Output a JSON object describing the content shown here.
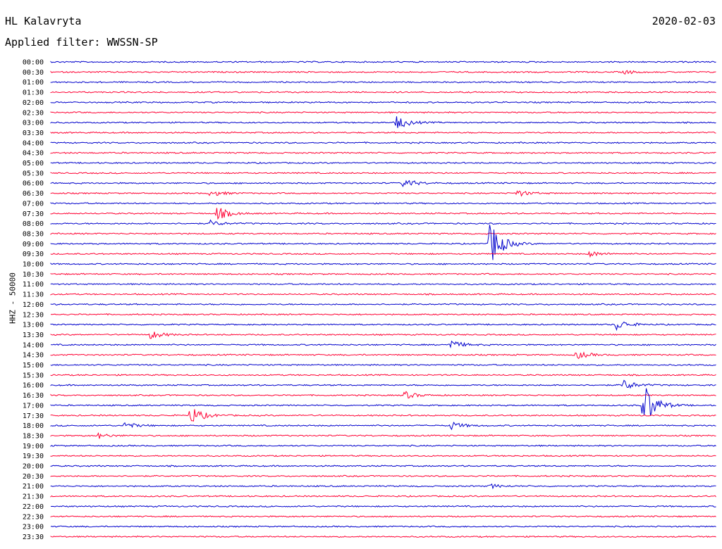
{
  "header": {
    "station": "HL Kalavryta",
    "date": "2020-02-03",
    "filter": "Applied filter: WWSSN-SP"
  },
  "chart_data": {
    "type": "line",
    "title": "HL Kalavryta",
    "ylabel": "HHZ - 50000",
    "colors": [
      "#0000cc",
      "#ff0033"
    ],
    "rows": [
      "00:00",
      "00:30",
      "01:00",
      "01:30",
      "02:00",
      "02:30",
      "03:00",
      "03:30",
      "04:00",
      "04:30",
      "05:00",
      "05:30",
      "06:00",
      "06:30",
      "07:00",
      "07:30",
      "08:00",
      "08:30",
      "09:00",
      "09:30",
      "10:00",
      "10:30",
      "11:00",
      "11:30",
      "12:00",
      "12:30",
      "13:00",
      "13:30",
      "14:00",
      "14:30",
      "15:00",
      "15:30",
      "16:00",
      "16:30",
      "17:00",
      "17:30",
      "18:00",
      "18:30",
      "19:00",
      "19:30",
      "20:00",
      "20:30",
      "21:00",
      "21:30",
      "22:00",
      "22:30",
      "23:00",
      "23:30"
    ],
    "events": [
      {
        "row": 1,
        "x": 0.86,
        "amp": 3
      },
      {
        "row": 6,
        "x": 0.52,
        "amp": 10
      },
      {
        "row": 12,
        "x": 0.53,
        "amp": 7
      },
      {
        "row": 13,
        "x": 0.24,
        "amp": 5
      },
      {
        "row": 13,
        "x": 0.7,
        "amp": 5
      },
      {
        "row": 15,
        "x": 0.25,
        "amp": 10
      },
      {
        "row": 16,
        "x": 0.24,
        "amp": 4
      },
      {
        "row": 18,
        "x": 0.66,
        "amp": 34
      },
      {
        "row": 19,
        "x": 0.81,
        "amp": 4
      },
      {
        "row": 26,
        "x": 0.85,
        "amp": 8
      },
      {
        "row": 27,
        "x": 0.15,
        "amp": 6
      },
      {
        "row": 28,
        "x": 0.6,
        "amp": 7
      },
      {
        "row": 29,
        "x": 0.79,
        "amp": 6
      },
      {
        "row": 32,
        "x": 0.86,
        "amp": 8
      },
      {
        "row": 33,
        "x": 0.53,
        "amp": 6
      },
      {
        "row": 34,
        "x": 0.89,
        "amp": 36
      },
      {
        "row": 35,
        "x": 0.21,
        "amp": 14
      },
      {
        "row": 36,
        "x": 0.11,
        "amp": 5
      },
      {
        "row": 36,
        "x": 0.6,
        "amp": 6
      },
      {
        "row": 37,
        "x": 0.07,
        "amp": 4
      },
      {
        "row": 42,
        "x": 0.66,
        "amp": 3
      }
    ]
  }
}
